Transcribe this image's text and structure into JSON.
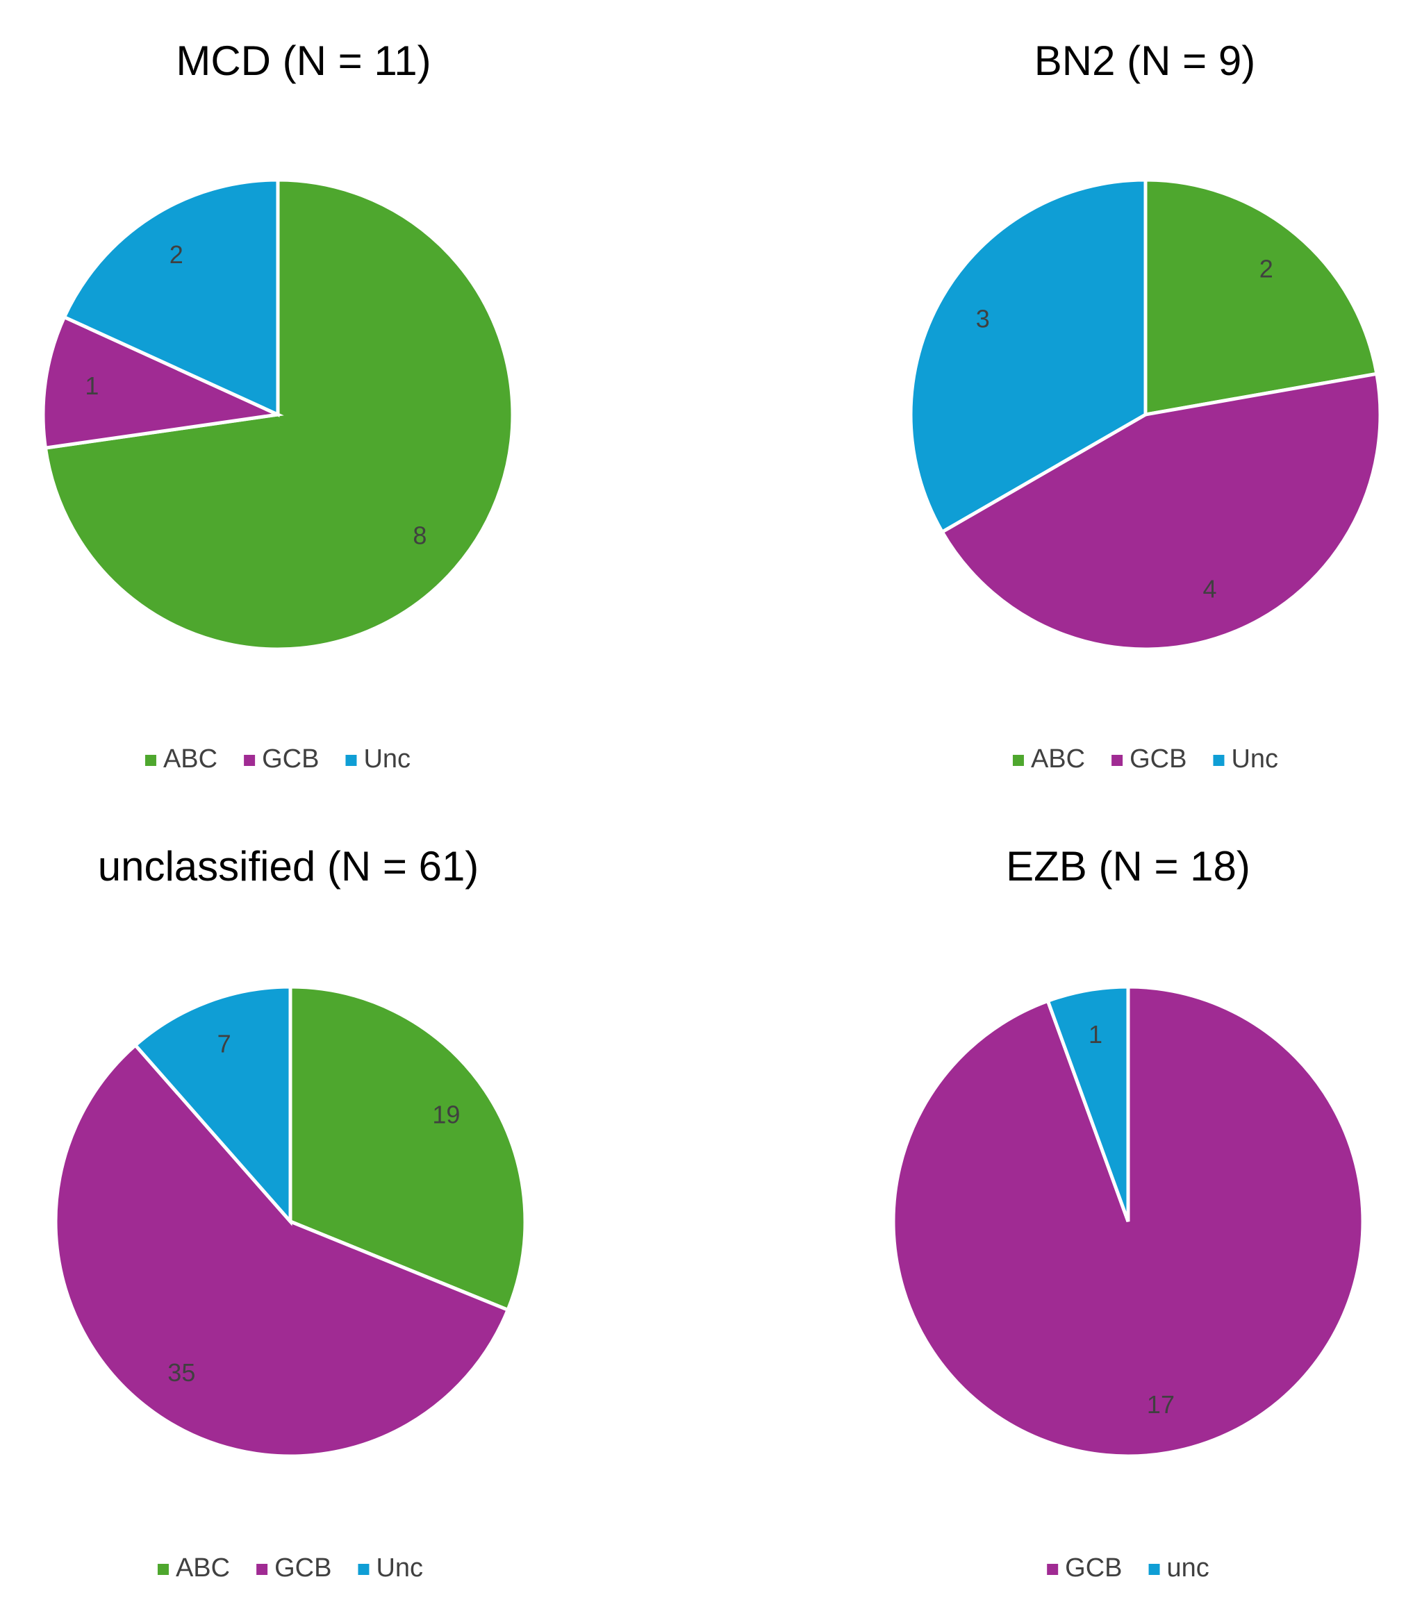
{
  "chart_data": [
    {
      "type": "pie",
      "title": "MCD (N = 11)",
      "categories": [
        "ABC",
        "GCB",
        "Unc"
      ],
      "values": [
        8,
        1,
        2
      ],
      "colors": [
        "#4ea72e",
        "#a02b93",
        "#0f9ed5"
      ]
    },
    {
      "type": "pie",
      "title": "BN2 (N = 9)",
      "categories": [
        "ABC",
        "GCB",
        "Unc"
      ],
      "values": [
        2,
        4,
        3
      ],
      "colors": [
        "#4ea72e",
        "#a02b93",
        "#0f9ed5"
      ]
    },
    {
      "type": "pie",
      "title": "unclassified (N = 61)",
      "categories": [
        "ABC",
        "GCB",
        "Unc"
      ],
      "values": [
        19,
        35,
        7
      ],
      "colors": [
        "#4ea72e",
        "#a02b93",
        "#0f9ed5"
      ]
    },
    {
      "type": "pie",
      "title": "EZB (N = 18)",
      "categories": [
        "GCB",
        "unc"
      ],
      "values": [
        17,
        1
      ],
      "colors": [
        "#a02b93",
        "#0f9ed5"
      ]
    }
  ]
}
